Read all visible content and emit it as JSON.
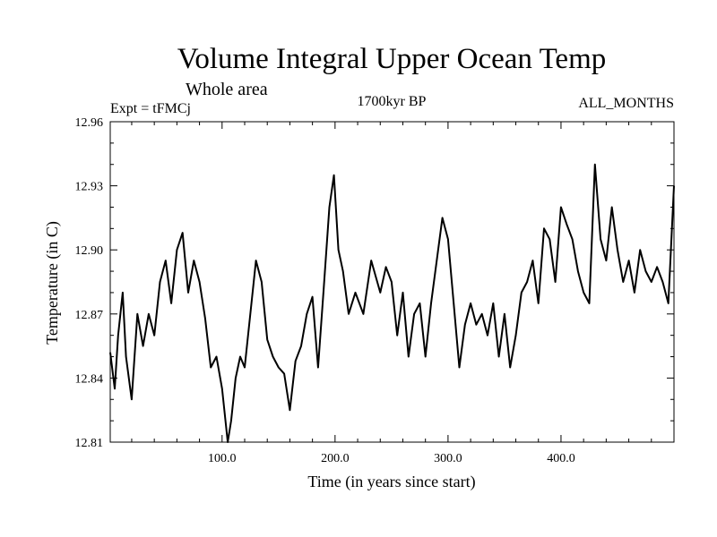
{
  "chart_data": {
    "type": "line",
    "title": "Volume Integral Upper Ocean Temp",
    "subtitle": "Whole area",
    "annotations": {
      "left": "Expt = tFMCj",
      "center": "1700kyr BP",
      "right": "ALL_MONTHS"
    },
    "xlabel": "Time (in years since start)",
    "ylabel": "Temperature (in C)",
    "xlim": [
      1,
      500
    ],
    "ylim": [
      12.81,
      12.96
    ],
    "xticks": [
      100,
      200,
      300,
      400
    ],
    "xtick_labels": [
      "100.0",
      "200.0",
      "300.0",
      "400.0"
    ],
    "yticks": [
      12.81,
      12.84,
      12.87,
      12.9,
      12.93,
      12.96
    ],
    "ytick_labels": [
      "12.81",
      "12.84",
      "12.87",
      "12.90",
      "12.93",
      "12.96"
    ],
    "grid": false,
    "series": [
      {
        "name": "Volume Integral Upper Ocean Temp",
        "color": "#000000",
        "x": [
          1,
          5,
          8,
          12,
          15,
          20,
          25,
          30,
          35,
          40,
          45,
          50,
          55,
          60,
          65,
          70,
          75,
          80,
          85,
          90,
          95,
          100,
          105,
          108,
          112,
          116,
          120,
          125,
          130,
          135,
          140,
          145,
          150,
          155,
          160,
          165,
          170,
          175,
          180,
          185,
          190,
          195,
          199,
          203,
          207,
          212,
          218,
          225,
          232,
          240,
          245,
          250,
          255,
          260,
          265,
          270,
          275,
          280,
          285,
          290,
          295,
          300,
          305,
          310,
          315,
          320,
          325,
          330,
          335,
          340,
          345,
          350,
          355,
          360,
          365,
          370,
          375,
          380,
          385,
          390,
          395,
          400,
          405,
          410,
          415,
          420,
          425,
          430,
          435,
          440,
          445,
          450,
          455,
          460,
          465,
          470,
          475,
          480,
          485,
          490,
          495,
          500
        ],
        "values": [
          12.852,
          12.835,
          12.86,
          12.88,
          12.85,
          12.83,
          12.87,
          12.855,
          12.87,
          12.86,
          12.885,
          12.895,
          12.875,
          12.9,
          12.908,
          12.88,
          12.895,
          12.885,
          12.868,
          12.845,
          12.85,
          12.835,
          12.81,
          12.82,
          12.84,
          12.85,
          12.845,
          12.87,
          12.895,
          12.885,
          12.858,
          12.85,
          12.845,
          12.842,
          12.825,
          12.848,
          12.855,
          12.87,
          12.878,
          12.845,
          12.882,
          12.92,
          12.935,
          12.9,
          12.89,
          12.87,
          12.88,
          12.87,
          12.895,
          12.88,
          12.892,
          12.885,
          12.86,
          12.88,
          12.85,
          12.87,
          12.875,
          12.85,
          12.875,
          12.895,
          12.915,
          12.905,
          12.875,
          12.845,
          12.865,
          12.875,
          12.865,
          12.87,
          12.86,
          12.875,
          12.85,
          12.87,
          12.845,
          12.86,
          12.88,
          12.885,
          12.895,
          12.875,
          12.91,
          12.905,
          12.885,
          12.92,
          12.912,
          12.905,
          12.89,
          12.88,
          12.875,
          12.94,
          12.905,
          12.895,
          12.92,
          12.9,
          12.885,
          12.895,
          12.88,
          12.9,
          12.89,
          12.885,
          12.892,
          12.885,
          12.875,
          12.93
        ]
      }
    ]
  }
}
